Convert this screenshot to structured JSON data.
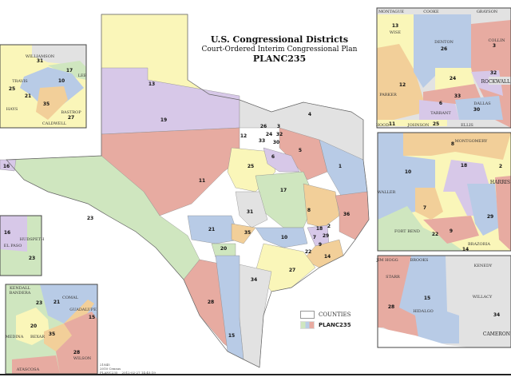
{
  "title": {
    "main": "U.S. Congressional Districts",
    "subtitle": "Court-Ordered Interim Congressional Plan",
    "plan": "PLANC235"
  },
  "legend": {
    "counties_label": "COUNTIES",
    "plan_label": "PLANC235",
    "colors": [
      "#cfe6bf",
      "#b9cde6",
      "#e8aaa0"
    ]
  },
  "footer": {
    "line1": "21845",
    "line2": "2010 Census",
    "line3": "PLANC235",
    "timestamp": "2012-02-27 14:45:19"
  },
  "colors": {
    "green": "#cfe6bf",
    "blue": "#b8cbe6",
    "red": "#e7aba1",
    "yellow": "#faf6b9",
    "purple": "#d7c8e8",
    "orange": "#f2cf99",
    "grey": "#e2e2e2"
  },
  "main_map": {
    "districts": [
      "13",
      "19",
      "4",
      "26",
      "3",
      "12",
      "33",
      "24",
      "32",
      "30",
      "5",
      "6",
      "1",
      "25",
      "11",
      "17",
      "8",
      "36",
      "31",
      "21",
      "35",
      "10",
      "18",
      "2",
      "29",
      "7",
      "9",
      "22",
      "14",
      "20",
      "27",
      "34",
      "28",
      "15",
      "23",
      "16"
    ]
  },
  "insets": {
    "austin": {
      "counties": [
        "WILLIAMSON",
        "TRAVIS",
        "HAYS",
        "BASTROP",
        "CALDWELL",
        "LEE"
      ],
      "districts": [
        "31",
        "17",
        "10",
        "25",
        "21",
        "35",
        "27"
      ]
    },
    "dfw": {
      "counties": [
        "MONTAGUE",
        "COOKE",
        "GRAYSON",
        "WISE",
        "DENTON",
        "COLLIN",
        "PARKER",
        "TARRANT",
        "DALLAS",
        "JOHNSON",
        "ELLIS",
        "HOOD",
        "ROCKWALL"
      ],
      "districts": [
        "13",
        "26",
        "3",
        "12",
        "24",
        "32",
        "33",
        "6",
        "30",
        "11",
        "25"
      ]
    },
    "houston": {
      "counties": [
        "MONTGOMERY",
        "WALLER",
        "FORT BEND",
        "BRAZORIA",
        "HARRIS"
      ],
      "districts": [
        "8",
        "10",
        "18",
        "2",
        "7",
        "29",
        "22",
        "9",
        "14"
      ]
    },
    "valley": {
      "counties": [
        "JIM HOGG",
        "BROOKS",
        "KENEDY",
        "STARR",
        "WILLACY",
        "HIDALGO",
        "CAMERON"
      ],
      "districts": [
        "15",
        "28",
        "34"
      ]
    },
    "el_paso": {
      "counties": [
        "EL PASO",
        "HUDSPETH"
      ],
      "districts": [
        "16",
        "23"
      ]
    },
    "san_antonio": {
      "counties": [
        "KENDALL",
        "BANDERA",
        "COMAL",
        "GUADALUPE",
        "MEDINA",
        "BEXAR",
        "WILSON",
        "ATASCOSA"
      ],
      "districts": [
        "23",
        "21",
        "15",
        "20",
        "35",
        "28"
      ]
    }
  }
}
